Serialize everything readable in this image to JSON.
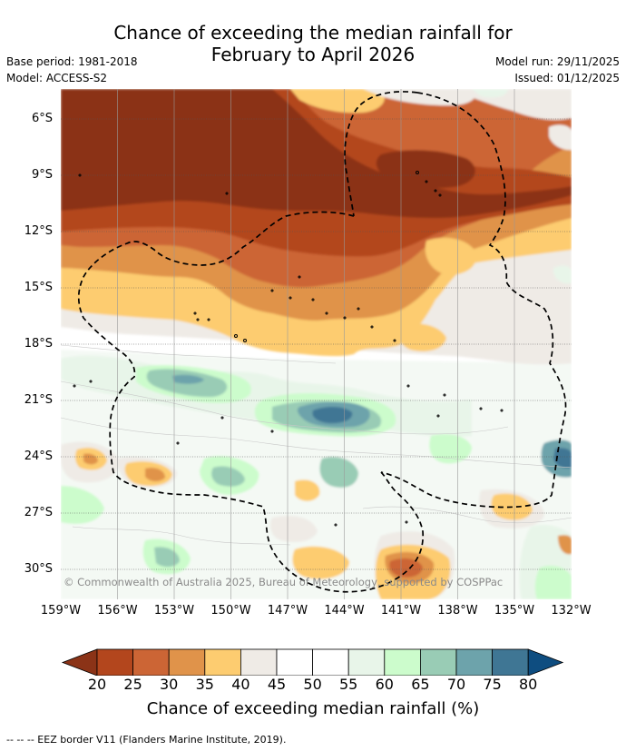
{
  "title": {
    "line1": "Chance of exceeding the median rainfall for",
    "line2": "February to April 2026"
  },
  "meta": {
    "base_period": "Base period: 1981-2018",
    "model": "Model: ACCESS-S2",
    "model_run": "Model run: 29/11/2025",
    "issued": "Issued: 01/12/2025"
  },
  "map": {
    "lat_labels": [
      "6°S",
      "9°S",
      "12°S",
      "15°S",
      "18°S",
      "21°S",
      "24°S",
      "27°S",
      "30°S"
    ],
    "lon_labels": [
      "159°W",
      "156°W",
      "153°W",
      "150°W",
      "147°W",
      "144°W",
      "141°W",
      "138°W",
      "135°W",
      "132°W"
    ],
    "copyright": "© Commonwealth of Australia 2025, Bureau of Meteorology, supported by COSPPac"
  },
  "colorbar": {
    "ticks": [
      "20",
      "25",
      "30",
      "35",
      "40",
      "45",
      "50",
      "55",
      "60",
      "65",
      "70",
      "75",
      "80"
    ],
    "colors": [
      "#8b3317",
      "#b3461d",
      "#cc6535",
      "#e0934a",
      "#fdcc70",
      "#efebe6",
      "#ffffff",
      "#ffffff",
      "#e8f5e9",
      "#ccfccc",
      "#99ccb5",
      "#6da3ab",
      "#3f7694",
      "#0e4d80"
    ],
    "label": "Chance of exceeding median rainfall (%)"
  },
  "footnote": "-- -- -- EEZ border V11 (Flanders Marine Institute, 2019)."
}
